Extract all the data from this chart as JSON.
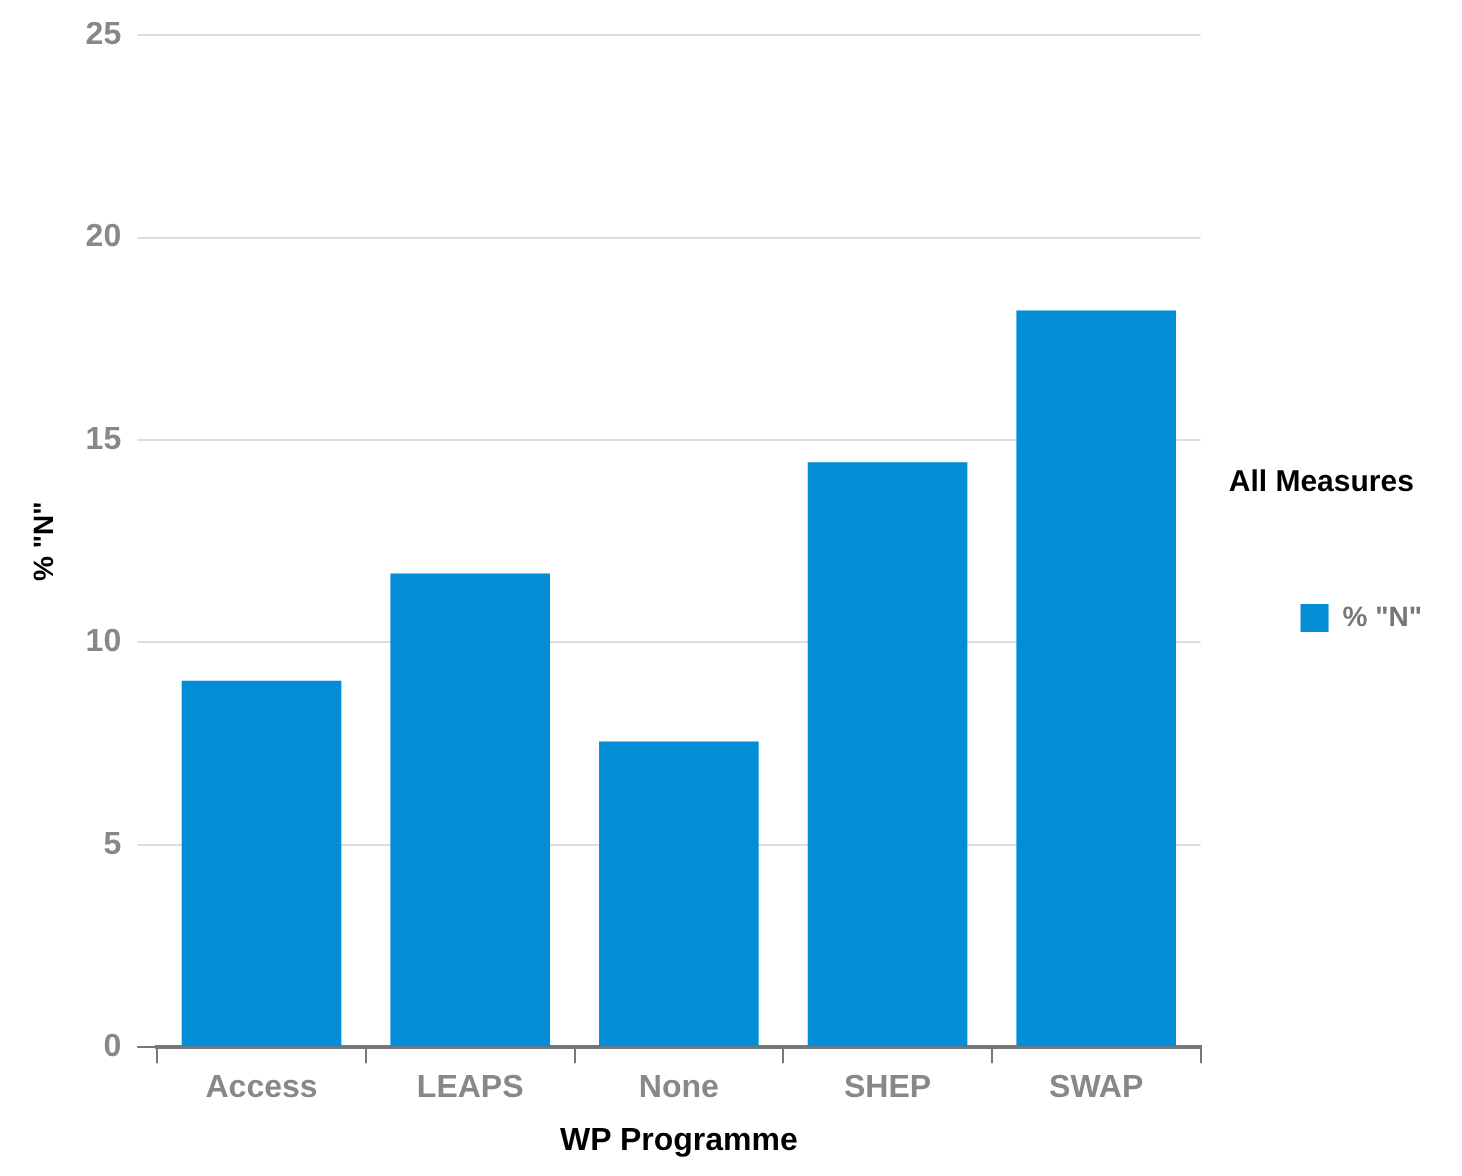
{
  "chart_data": {
    "type": "bar",
    "xlabel": "WP Programme",
    "ylabel": "% \"N\"",
    "legend_title": "All Measures",
    "categories": [
      "Access",
      "LEAPS",
      "None",
      "SHEP",
      "SWAP"
    ],
    "series": [
      {
        "name": "% \"N\"",
        "color": "#038dd4",
        "values": [
          9.05,
          11.7,
          7.55,
          14.45,
          18.2
        ]
      }
    ],
    "ylim": [
      0,
      25
    ],
    "yticks": [
      0,
      5,
      10,
      15,
      20,
      25
    ],
    "grid": "y",
    "legend": "right"
  }
}
